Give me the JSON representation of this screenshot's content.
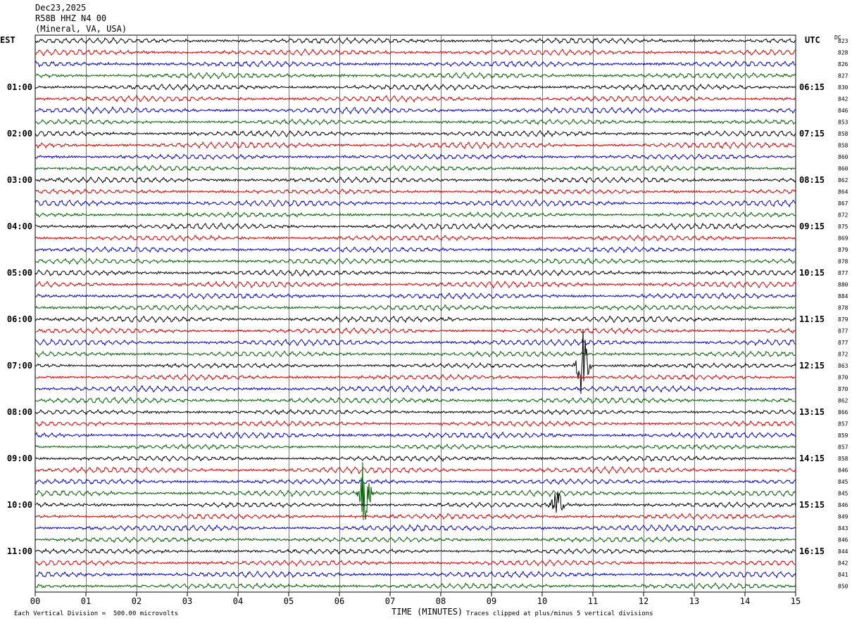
{
  "header": {
    "date": "Dec23,2025",
    "station": "R58B HHZ N4 00",
    "location": "(Mineral, VA, USA)"
  },
  "left_tz": "EST",
  "right_tz": "UTC",
  "dc_label": "DC",
  "footer": {
    "scale": "Each Vertical Division =  500.00 microvolts",
    "clip": "Traces clipped at plus/minus 5 vertical divisions"
  },
  "chart_data": {
    "type": "line",
    "xlabel": "TIME (MINUTES)",
    "xlim": [
      0,
      15
    ],
    "x_ticks": [
      "00",
      "01",
      "02",
      "03",
      "04",
      "05",
      "06",
      "07",
      "08",
      "09",
      "10",
      "11",
      "12",
      "13",
      "14",
      "15"
    ],
    "grid": true,
    "trace_colors": [
      "#000000",
      "#e00000",
      "#0000d0",
      "#006000"
    ],
    "left_hour_labels": [
      "01:00",
      "02:00",
      "03:00",
      "04:00",
      "05:00",
      "06:00",
      "07:00",
      "08:00",
      "09:00",
      "10:00",
      "11:00"
    ],
    "right_hour_labels": [
      "06:15",
      "07:15",
      "08:15",
      "09:15",
      "10:15",
      "11:15",
      "12:15",
      "13:15",
      "14:15",
      "15:15",
      "16:15"
    ],
    "dc_offsets": [
      823,
      828,
      826,
      827,
      830,
      842,
      846,
      853,
      858,
      858,
      860,
      860,
      862,
      864,
      867,
      872,
      875,
      869,
      879,
      878,
      877,
      880,
      884,
      878,
      879,
      877,
      877,
      872,
      863,
      870,
      870,
      862,
      866,
      857,
      859,
      857,
      858,
      846,
      845,
      845,
      846,
      849,
      843,
      846,
      844,
      842,
      841,
      850
    ],
    "events": [
      {
        "trace": 28,
        "minute": 10.8,
        "amplitude": "large"
      },
      {
        "trace": 39,
        "minute": 6.5,
        "amplitude": "large"
      },
      {
        "trace": 40,
        "minute": 10.3,
        "amplitude": "medium"
      }
    ]
  }
}
